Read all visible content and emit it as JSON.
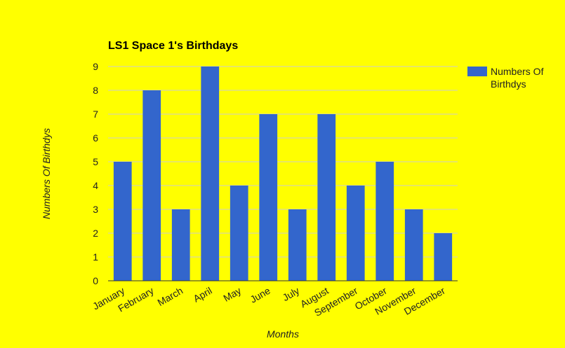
{
  "colors": {
    "background": "#ffff00",
    "bar": "#3366cc",
    "gridline": "#cccccc",
    "baseline": "#333333"
  },
  "chart_data": {
    "type": "bar",
    "title": "LS1 Space 1's Birthdays",
    "xlabel": "Months",
    "ylabel": "Numbers Of Birthdys",
    "categories": [
      "January",
      "February",
      "March",
      "April",
      "May",
      "June",
      "July",
      "August",
      "September",
      "October",
      "November",
      "December"
    ],
    "series": [
      {
        "name": "Numbers Of Birthdys",
        "values": [
          5,
          8,
          3,
          9,
          4,
          7,
          3,
          7,
          4,
          5,
          3,
          2
        ]
      }
    ],
    "ylim": [
      0,
      9
    ],
    "yticks": [
      "0",
      "1",
      "2",
      "3",
      "4",
      "5",
      "6",
      "7",
      "8",
      "9"
    ],
    "grid": true,
    "legend_position": "right",
    "legend_lines": [
      "Numbers Of",
      "Birthdys"
    ]
  }
}
